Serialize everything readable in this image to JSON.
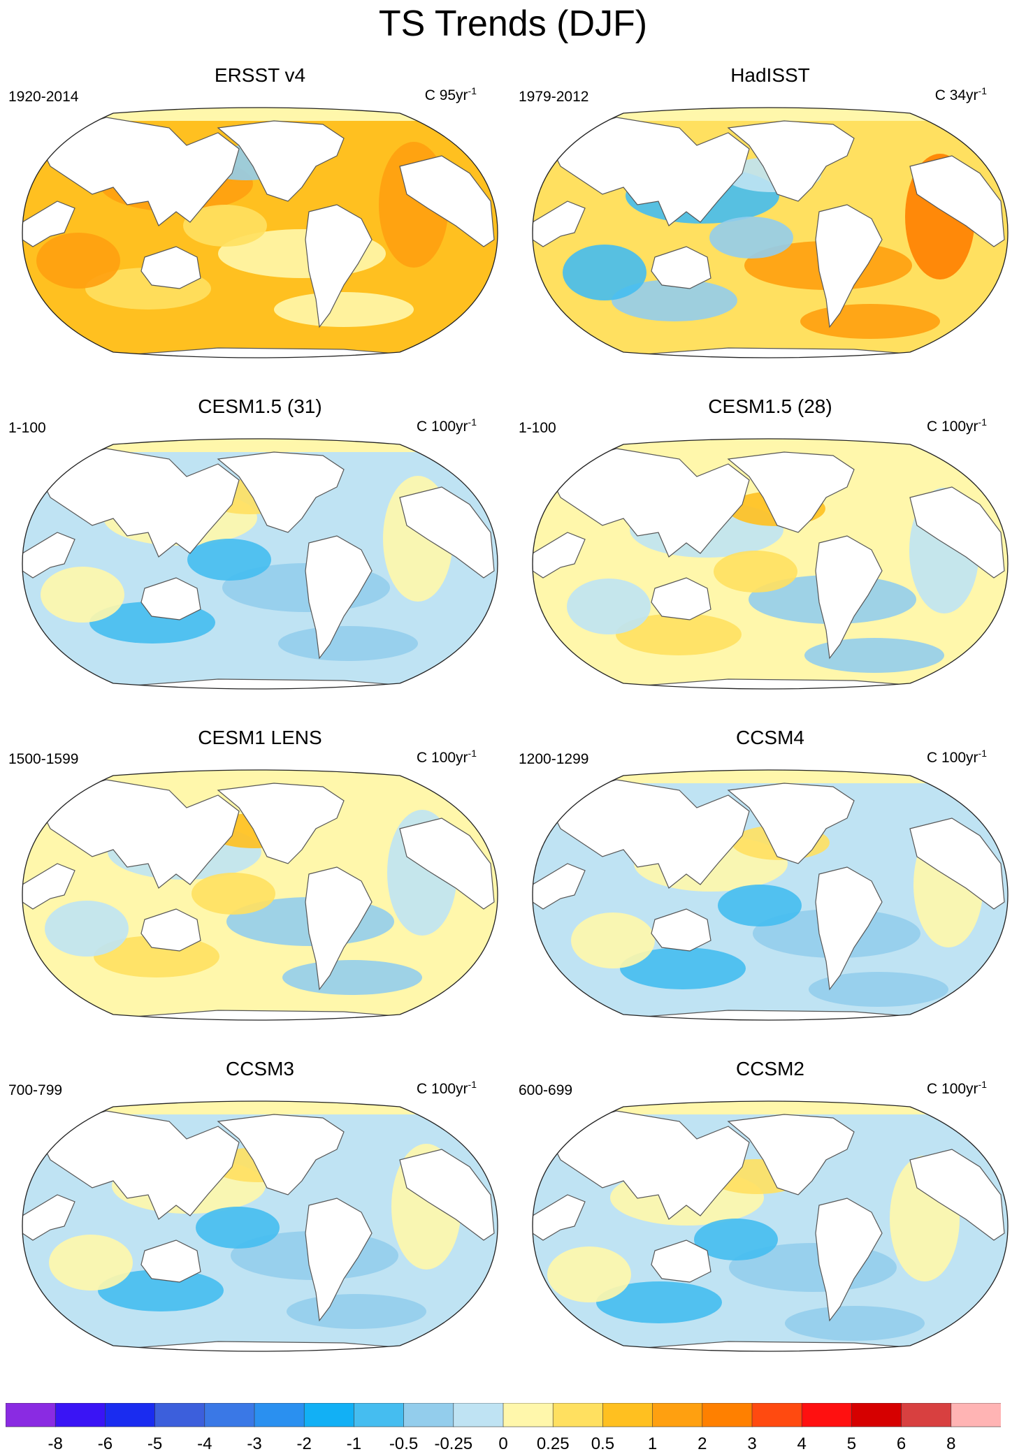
{
  "title": "TS Trends (DJF)",
  "panels": [
    {
      "name": "ERSST v4",
      "years": "1920-2014",
      "units_prefix": "C 95yr",
      "units_sup": "-1",
      "pattern": "warm"
    },
    {
      "name": "HadISST",
      "years": "1979-2012",
      "units_prefix": "C 34yr",
      "units_sup": "-1",
      "pattern": "mixed"
    },
    {
      "name": "CESM1.5 (31)",
      "years": "1-100",
      "units_prefix": "C 100yr",
      "units_sup": "-1",
      "pattern": "cool"
    },
    {
      "name": "CESM1.5 (28)",
      "years": "1-100",
      "units_prefix": "C 100yr",
      "units_sup": "-1",
      "pattern": "neutral"
    },
    {
      "name": "CESM1 LENS",
      "years": "1500-1599",
      "units_prefix": "C 100yr",
      "units_sup": "-1",
      "pattern": "neutral"
    },
    {
      "name": "CCSM4",
      "years": "1200-1299",
      "units_prefix": "C 100yr",
      "units_sup": "-1",
      "pattern": "cool"
    },
    {
      "name": "CCSM3",
      "years": "700-799",
      "units_prefix": "C 100yr",
      "units_sup": "-1",
      "pattern": "cool"
    },
    {
      "name": "CCSM2",
      "years": "600-699",
      "units_prefix": "C 100yr",
      "units_sup": "-1",
      "pattern": "cool"
    }
  ],
  "colorbar": {
    "labels": [
      "-8",
      "-6",
      "-5",
      "-4",
      "-3",
      "-2",
      "-1",
      "-0.5",
      "-0.25",
      "0",
      "0.25",
      "0.5",
      "1",
      "2",
      "3",
      "4",
      "5",
      "6",
      "8"
    ],
    "colors": [
      "#8a2be2",
      "#3a14f5",
      "#1a2cf0",
      "#3c5fdc",
      "#3a78e6",
      "#2a90f0",
      "#12b0f5",
      "#45bdf0",
      "#93cdec",
      "#bfe3f3",
      "#fff7ab",
      "#ffe060",
      "#ffc020",
      "#ffa010",
      "#ff8000",
      "#ff4a10",
      "#ff1010",
      "#d60000",
      "#d84040",
      "#ffb4b4"
    ]
  }
}
